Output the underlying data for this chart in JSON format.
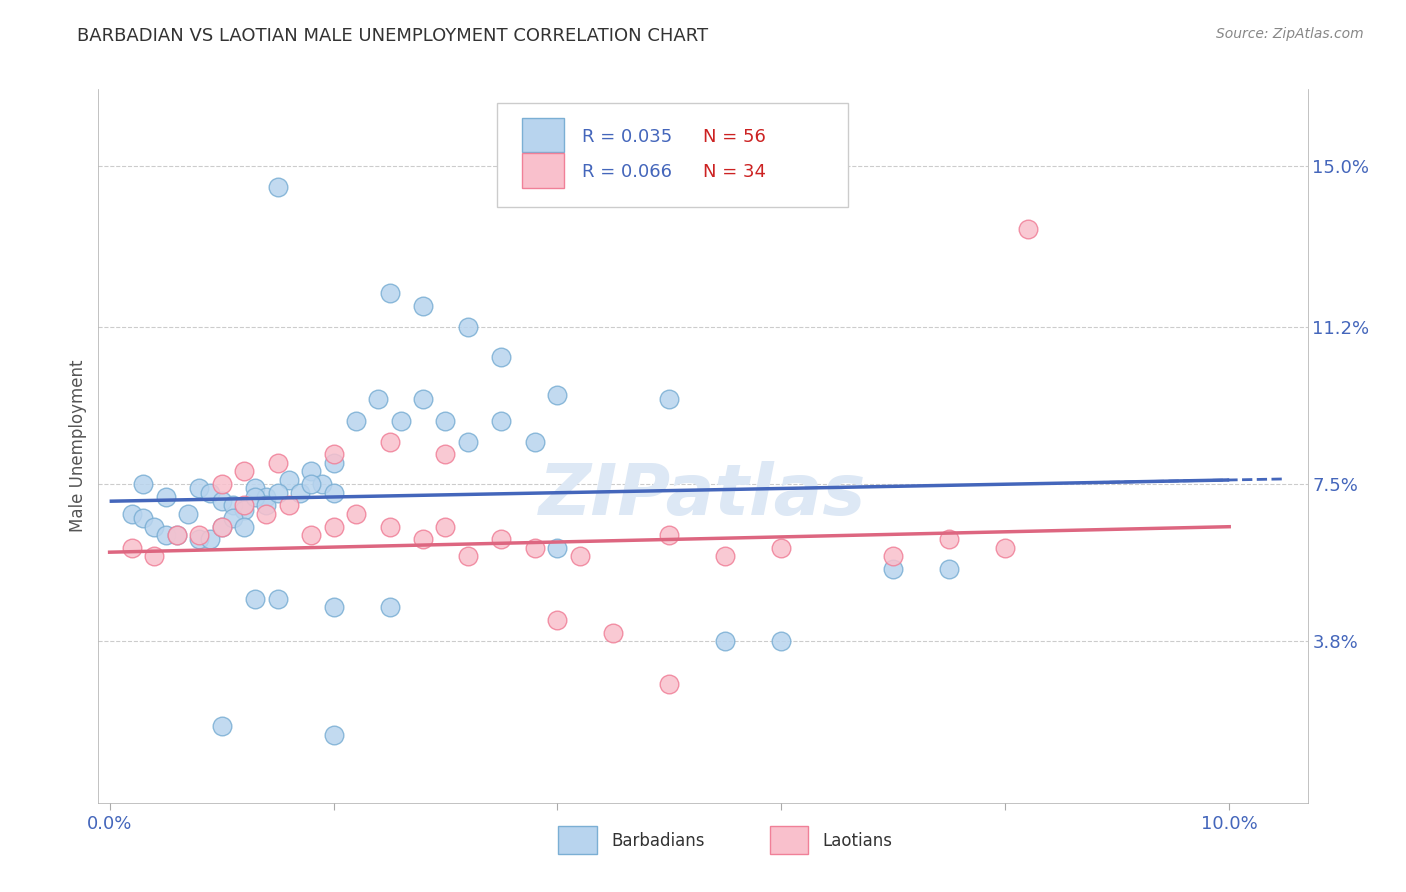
{
  "title": "BARBADIAN VS LAOTIAN MALE UNEMPLOYMENT CORRELATION CHART",
  "source": "Source: ZipAtlas.com",
  "ylabel": "Male Unemployment",
  "ytick_values": [
    0.038,
    0.075,
    0.112,
    0.15
  ],
  "ytick_labels": [
    "3.8%",
    "7.5%",
    "11.2%",
    "15.0%"
  ],
  "xmin": 0.0,
  "xmax": 0.1,
  "ymin": 0.0,
  "ymax": 0.165,
  "blue_face": "#b8d4ee",
  "blue_edge": "#7bafd4",
  "pink_face": "#f9c0cc",
  "pink_edge": "#f08098",
  "blue_line_color": "#4466bb",
  "pink_line_color": "#dd6680",
  "grid_color": "#cccccc",
  "title_color": "#333333",
  "axis_tick_color": "#4466bb",
  "watermark_color": "#dde8f5",
  "blue_line_start": 0.071,
  "blue_line_end": 0.076,
  "pink_line_start": 0.059,
  "pink_line_end": 0.065,
  "barbadian_x": [
    0.003,
    0.005,
    0.008,
    0.009,
    0.01,
    0.011,
    0.012,
    0.013,
    0.014,
    0.015,
    0.016,
    0.017,
    0.018,
    0.019,
    0.02,
    0.022,
    0.024,
    0.026,
    0.028,
    0.03,
    0.032,
    0.035,
    0.038,
    0.04,
    0.002,
    0.003,
    0.004,
    0.005,
    0.006,
    0.007,
    0.008,
    0.009,
    0.01,
    0.011,
    0.012,
    0.013,
    0.014,
    0.015,
    0.018,
    0.02,
    0.025,
    0.028,
    0.032,
    0.035,
    0.04,
    0.05,
    0.055,
    0.06,
    0.013,
    0.015,
    0.02,
    0.025,
    0.07,
    0.075,
    0.01,
    0.02
  ],
  "barbadian_y": [
    0.075,
    0.072,
    0.074,
    0.073,
    0.071,
    0.07,
    0.069,
    0.074,
    0.072,
    0.145,
    0.076,
    0.073,
    0.078,
    0.075,
    0.08,
    0.09,
    0.095,
    0.09,
    0.095,
    0.09,
    0.085,
    0.09,
    0.085,
    0.06,
    0.068,
    0.067,
    0.065,
    0.063,
    0.063,
    0.068,
    0.062,
    0.062,
    0.065,
    0.067,
    0.065,
    0.072,
    0.07,
    0.073,
    0.075,
    0.073,
    0.12,
    0.117,
    0.112,
    0.105,
    0.096,
    0.095,
    0.038,
    0.038,
    0.048,
    0.048,
    0.046,
    0.046,
    0.055,
    0.055,
    0.018,
    0.016
  ],
  "laotian_x": [
    0.002,
    0.004,
    0.006,
    0.008,
    0.01,
    0.012,
    0.014,
    0.016,
    0.018,
    0.02,
    0.022,
    0.025,
    0.028,
    0.03,
    0.032,
    0.035,
    0.038,
    0.042,
    0.05,
    0.055,
    0.06,
    0.07,
    0.075,
    0.08,
    0.01,
    0.012,
    0.015,
    0.02,
    0.025,
    0.03,
    0.04,
    0.045,
    0.05,
    0.082
  ],
  "laotian_y": [
    0.06,
    0.058,
    0.063,
    0.063,
    0.065,
    0.07,
    0.068,
    0.07,
    0.063,
    0.065,
    0.068,
    0.065,
    0.062,
    0.065,
    0.058,
    0.062,
    0.06,
    0.058,
    0.063,
    0.058,
    0.06,
    0.058,
    0.062,
    0.06,
    0.075,
    0.078,
    0.08,
    0.082,
    0.085,
    0.082,
    0.043,
    0.04,
    0.028,
    0.135
  ]
}
